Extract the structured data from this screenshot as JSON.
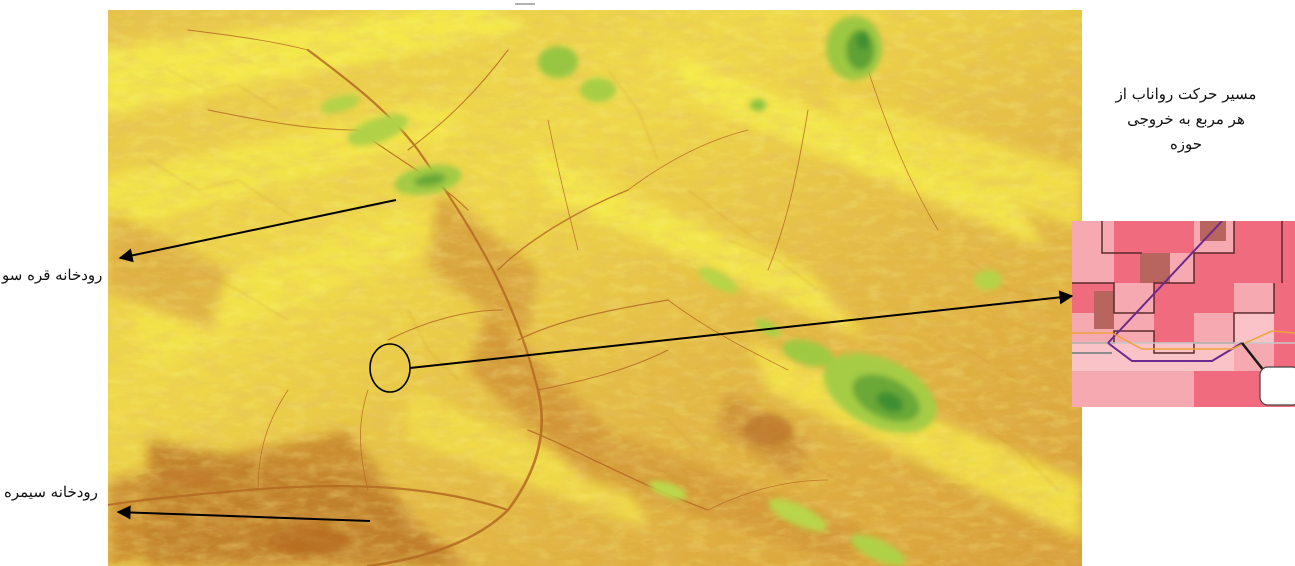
{
  "labels": {
    "gharesou_river": "رودخانه قره سو",
    "seymareh_river": "رودخانه سیمره",
    "runoff_line1": "مسیر حرکت رواناب از",
    "runoff_line2": "هر مربع به خروجی",
    "runoff_line3": "حوزه"
  },
  "colors": {
    "lowland": "#c8862e",
    "midland": "#e3b445",
    "upland": "#f2ea47",
    "highland": "#8cc23f",
    "peak": "#3f8f33",
    "inset_bg": "#f16b7e",
    "inset_light": "#f7a9b1",
    "inset_path": "#6b2a8c"
  }
}
